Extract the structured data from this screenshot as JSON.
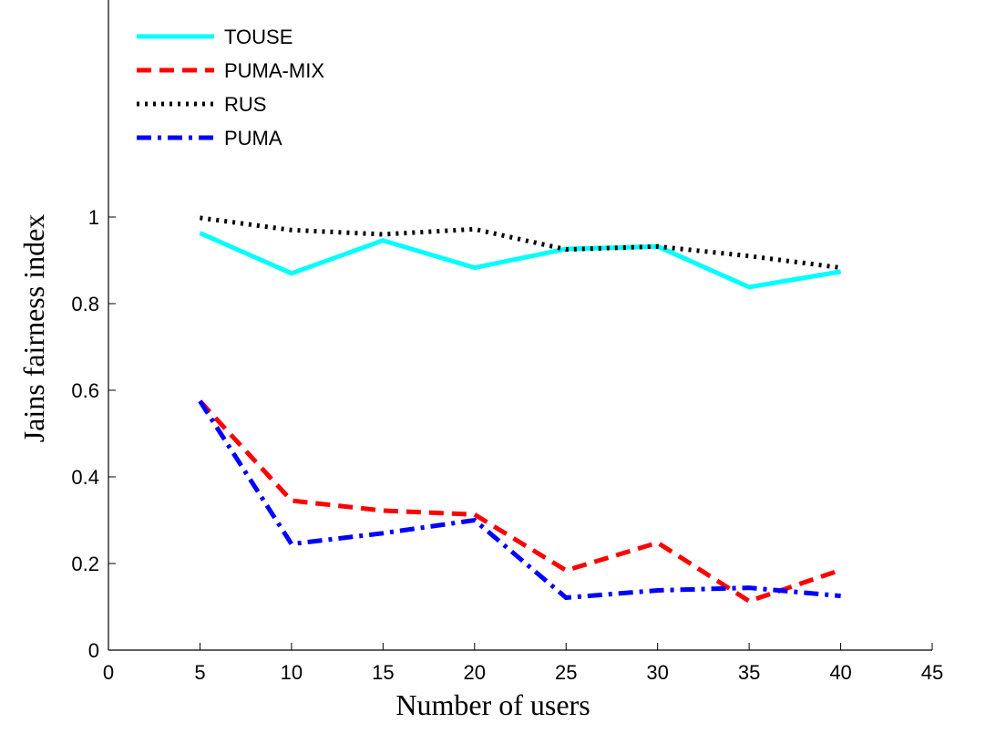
{
  "chart_data": {
    "type": "line",
    "xlabel": "Number of users",
    "ylabel": "Jains fairness index",
    "xlim": [
      0,
      45
    ],
    "ylim": [
      0,
      1.0
    ],
    "xticks": [
      0,
      5,
      10,
      15,
      20,
      25,
      30,
      35,
      40,
      45
    ],
    "xtick_labels": [
      "0",
      "5",
      "10",
      "15",
      "20",
      "25",
      "30",
      "35",
      "40",
      "45"
    ],
    "yticks": [
      0,
      0.2,
      0.4,
      0.6,
      0.8,
      1
    ],
    "ytick_labels": [
      "0",
      "0.2",
      "0.4",
      "0.6",
      "0.8",
      "1"
    ],
    "grid": false,
    "legend_position": "top-left",
    "x": [
      5,
      10,
      15,
      20,
      25,
      30,
      35,
      40
    ],
    "series": [
      {
        "name": "TOUSE",
        "color": "#00ffff",
        "style": "solid",
        "values": [
          0.963,
          0.87,
          0.946,
          0.883,
          0.926,
          0.932,
          0.838,
          0.874
        ]
      },
      {
        "name": "PUMA-MIX",
        "color": "#ff0000",
        "style": "dashed",
        "values": [
          0.575,
          0.345,
          0.322,
          0.313,
          0.184,
          0.248,
          0.113,
          0.185
        ]
      },
      {
        "name": "RUS",
        "color": "#000000",
        "style": "dotted",
        "values": [
          0.998,
          0.97,
          0.96,
          0.972,
          0.925,
          0.932,
          0.91,
          0.883
        ]
      },
      {
        "name": "PUMA",
        "color": "#0000ff",
        "style": "dashdot",
        "values": [
          0.575,
          0.245,
          0.27,
          0.3,
          0.121,
          0.138,
          0.144,
          0.125
        ]
      }
    ]
  }
}
